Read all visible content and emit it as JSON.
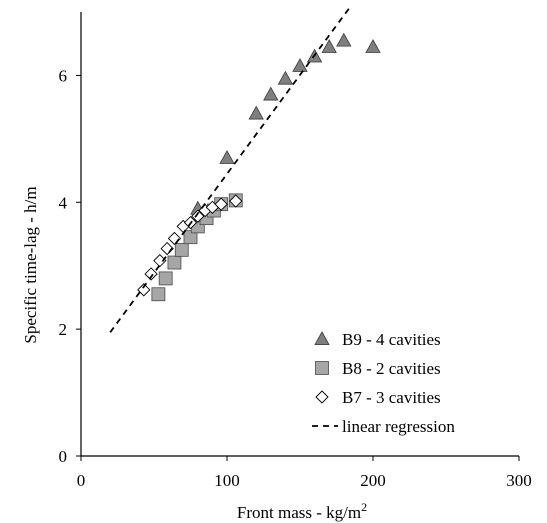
{
  "chart_data": {
    "type": "scatter",
    "title": "",
    "xlabel": "Front mass - kg/m",
    "xlabel_sup": "2",
    "ylabel": "Specific time-lag - h/m",
    "xlim": [
      0,
      300
    ],
    "ylim": [
      0,
      7
    ],
    "xticks": [
      0,
      100,
      200,
      300
    ],
    "yticks": [
      0,
      2,
      4,
      6
    ],
    "grid": false,
    "legend_position": "bottom-right",
    "series": [
      {
        "name": "B9 - 4 cavities",
        "marker": "triangle",
        "color": "#7f7f7f",
        "points": [
          {
            "x": 80,
            "y": 3.9
          },
          {
            "x": 100,
            "y": 4.7
          },
          {
            "x": 120,
            "y": 5.4
          },
          {
            "x": 130,
            "y": 5.7
          },
          {
            "x": 140,
            "y": 5.95
          },
          {
            "x": 150,
            "y": 6.15
          },
          {
            "x": 160,
            "y": 6.3
          },
          {
            "x": 170,
            "y": 6.45
          },
          {
            "x": 180,
            "y": 6.55
          },
          {
            "x": 200,
            "y": 6.45
          }
        ]
      },
      {
        "name": "B8 - 2 cavities",
        "marker": "square",
        "color": "#a6a6a6",
        "points": [
          {
            "x": 53,
            "y": 2.55
          },
          {
            "x": 58,
            "y": 2.8
          },
          {
            "x": 64,
            "y": 3.05
          },
          {
            "x": 69,
            "y": 3.25
          },
          {
            "x": 75,
            "y": 3.45
          },
          {
            "x": 80,
            "y": 3.62
          },
          {
            "x": 86,
            "y": 3.75
          },
          {
            "x": 91,
            "y": 3.87
          },
          {
            "x": 96,
            "y": 3.97
          },
          {
            "x": 106,
            "y": 4.03
          }
        ]
      },
      {
        "name": "B7 - 3 cavities",
        "marker": "diamond",
        "color": "#ffffff",
        "points": [
          {
            "x": 43,
            "y": 2.62
          },
          {
            "x": 48,
            "y": 2.87
          },
          {
            "x": 54,
            "y": 3.08
          },
          {
            "x": 59,
            "y": 3.27
          },
          {
            "x": 64,
            "y": 3.43
          },
          {
            "x": 70,
            "y": 3.62
          },
          {
            "x": 75,
            "y": 3.68
          },
          {
            "x": 80,
            "y": 3.78
          },
          {
            "x": 85,
            "y": 3.87
          },
          {
            "x": 90,
            "y": 3.92
          },
          {
            "x": 96,
            "y": 3.97
          },
          {
            "x": 106,
            "y": 4.02
          }
        ]
      },
      {
        "name": "linear regression",
        "marker": "dashed-line",
        "color": "#000000",
        "points": [
          {
            "x": 20,
            "y": 1.95
          },
          {
            "x": 185,
            "y": 7.1
          }
        ]
      }
    ]
  }
}
